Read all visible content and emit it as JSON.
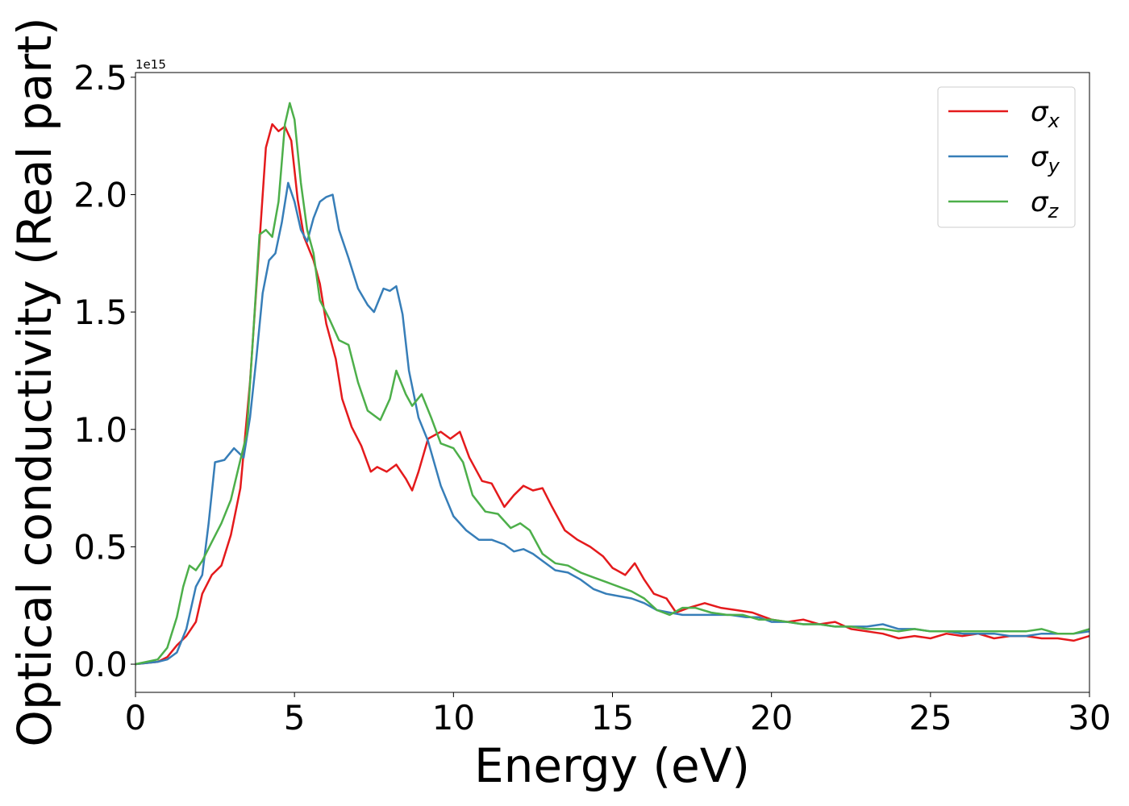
{
  "chart_data": {
    "type": "line",
    "xlabel": "Energy (eV)",
    "ylabel": "Optical conductivity (Real part)",
    "y_offset_text": "1e15",
    "xlim": [
      0,
      30
    ],
    "ylim": [
      -0.12,
      2.52
    ],
    "x_ticks": [
      0,
      5,
      10,
      15,
      20,
      25,
      30
    ],
    "x_tick_labels": [
      "0",
      "5",
      "10",
      "15",
      "20",
      "25",
      "30"
    ],
    "y_ticks": [
      0.0,
      0.5,
      1.0,
      1.5,
      2.0,
      2.5
    ],
    "y_tick_labels": [
      "0.0",
      "0.5",
      "1.0",
      "1.5",
      "2.0",
      "2.5"
    ],
    "grid": false,
    "legend_position": "top-right",
    "series": [
      {
        "name": "σx",
        "symbol": "σ",
        "subscript": "x",
        "color": "#e41a1c",
        "points": [
          [
            0,
            0
          ],
          [
            0.7,
            0.01
          ],
          [
            1,
            0.03
          ],
          [
            1.3,
            0.08
          ],
          [
            1.6,
            0.12
          ],
          [
            1.9,
            0.18
          ],
          [
            2.1,
            0.3
          ],
          [
            2.4,
            0.38
          ],
          [
            2.7,
            0.42
          ],
          [
            3,
            0.55
          ],
          [
            3.3,
            0.75
          ],
          [
            3.6,
            1.2
          ],
          [
            3.9,
            1.8
          ],
          [
            4.1,
            2.2
          ],
          [
            4.3,
            2.3
          ],
          [
            4.5,
            2.27
          ],
          [
            4.7,
            2.29
          ],
          [
            4.9,
            2.23
          ],
          [
            5.1,
            1.98
          ],
          [
            5.3,
            1.82
          ],
          [
            5.6,
            1.72
          ],
          [
            5.8,
            1.62
          ],
          [
            6.0,
            1.45
          ],
          [
            6.3,
            1.3
          ],
          [
            6.5,
            1.13
          ],
          [
            6.8,
            1.01
          ],
          [
            7.1,
            0.93
          ],
          [
            7.4,
            0.82
          ],
          [
            7.6,
            0.84
          ],
          [
            7.9,
            0.82
          ],
          [
            8.2,
            0.85
          ],
          [
            8.5,
            0.79
          ],
          [
            8.7,
            0.74
          ],
          [
            8.9,
            0.82
          ],
          [
            9.2,
            0.96
          ],
          [
            9.6,
            0.99
          ],
          [
            9.9,
            0.96
          ],
          [
            10.2,
            0.99
          ],
          [
            10.5,
            0.88
          ],
          [
            10.9,
            0.78
          ],
          [
            11.2,
            0.77
          ],
          [
            11.6,
            0.67
          ],
          [
            11.9,
            0.72
          ],
          [
            12.2,
            0.76
          ],
          [
            12.5,
            0.74
          ],
          [
            12.8,
            0.75
          ],
          [
            13.1,
            0.67
          ],
          [
            13.5,
            0.57
          ],
          [
            13.9,
            0.53
          ],
          [
            14.3,
            0.5
          ],
          [
            14.7,
            0.46
          ],
          [
            15.0,
            0.41
          ],
          [
            15.4,
            0.38
          ],
          [
            15.7,
            0.43
          ],
          [
            16.0,
            0.36
          ],
          [
            16.3,
            0.3
          ],
          [
            16.7,
            0.28
          ],
          [
            17.0,
            0.22
          ],
          [
            17.4,
            0.24
          ],
          [
            17.9,
            0.26
          ],
          [
            18.4,
            0.24
          ],
          [
            18.9,
            0.23
          ],
          [
            19.4,
            0.22
          ],
          [
            20,
            0.19
          ],
          [
            20.5,
            0.18
          ],
          [
            21,
            0.19
          ],
          [
            21.5,
            0.17
          ],
          [
            22,
            0.18
          ],
          [
            22.5,
            0.15
          ],
          [
            23,
            0.14
          ],
          [
            23.5,
            0.13
          ],
          [
            24,
            0.11
          ],
          [
            24.5,
            0.12
          ],
          [
            25,
            0.11
          ],
          [
            25.5,
            0.13
          ],
          [
            26,
            0.12
          ],
          [
            26.5,
            0.13
          ],
          [
            27,
            0.11
          ],
          [
            27.5,
            0.12
          ],
          [
            28,
            0.12
          ],
          [
            28.5,
            0.11
          ],
          [
            29,
            0.11
          ],
          [
            29.5,
            0.1
          ],
          [
            30,
            0.12
          ]
        ]
      },
      {
        "name": "σy",
        "symbol": "σ",
        "subscript": "y",
        "color": "#377eb8",
        "points": [
          [
            0,
            0
          ],
          [
            0.7,
            0.01
          ],
          [
            1,
            0.02
          ],
          [
            1.3,
            0.05
          ],
          [
            1.6,
            0.15
          ],
          [
            1.9,
            0.33
          ],
          [
            2.1,
            0.38
          ],
          [
            2.3,
            0.6
          ],
          [
            2.5,
            0.86
          ],
          [
            2.8,
            0.87
          ],
          [
            3.1,
            0.92
          ],
          [
            3.4,
            0.88
          ],
          [
            3.6,
            1.05
          ],
          [
            3.8,
            1.3
          ],
          [
            4.0,
            1.58
          ],
          [
            4.2,
            1.72
          ],
          [
            4.4,
            1.75
          ],
          [
            4.6,
            1.88
          ],
          [
            4.8,
            2.05
          ],
          [
            5.0,
            1.97
          ],
          [
            5.2,
            1.85
          ],
          [
            5.4,
            1.8
          ],
          [
            5.6,
            1.9
          ],
          [
            5.8,
            1.97
          ],
          [
            6.0,
            1.99
          ],
          [
            6.2,
            2.0
          ],
          [
            6.4,
            1.85
          ],
          [
            6.7,
            1.73
          ],
          [
            7.0,
            1.6
          ],
          [
            7.3,
            1.53
          ],
          [
            7.5,
            1.5
          ],
          [
            7.8,
            1.6
          ],
          [
            8.0,
            1.59
          ],
          [
            8.2,
            1.61
          ],
          [
            8.4,
            1.49
          ],
          [
            8.6,
            1.25
          ],
          [
            8.9,
            1.05
          ],
          [
            9.2,
            0.95
          ],
          [
            9.6,
            0.76
          ],
          [
            10.0,
            0.63
          ],
          [
            10.4,
            0.57
          ],
          [
            10.8,
            0.53
          ],
          [
            11.2,
            0.53
          ],
          [
            11.6,
            0.51
          ],
          [
            11.9,
            0.48
          ],
          [
            12.2,
            0.49
          ],
          [
            12.5,
            0.47
          ],
          [
            12.8,
            0.44
          ],
          [
            13.2,
            0.4
          ],
          [
            13.6,
            0.39
          ],
          [
            14.0,
            0.36
          ],
          [
            14.4,
            0.32
          ],
          [
            14.8,
            0.3
          ],
          [
            15.2,
            0.29
          ],
          [
            15.6,
            0.28
          ],
          [
            16.0,
            0.26
          ],
          [
            16.4,
            0.23
          ],
          [
            16.8,
            0.22
          ],
          [
            17.2,
            0.21
          ],
          [
            17.7,
            0.21
          ],
          [
            18.2,
            0.21
          ],
          [
            18.7,
            0.21
          ],
          [
            19.2,
            0.2
          ],
          [
            19.6,
            0.2
          ],
          [
            20,
            0.18
          ],
          [
            20.5,
            0.18
          ],
          [
            21,
            0.17
          ],
          [
            21.5,
            0.17
          ],
          [
            22,
            0.16
          ],
          [
            22.5,
            0.16
          ],
          [
            23,
            0.16
          ],
          [
            23.5,
            0.17
          ],
          [
            24,
            0.15
          ],
          [
            24.5,
            0.15
          ],
          [
            25,
            0.14
          ],
          [
            25.5,
            0.14
          ],
          [
            26,
            0.13
          ],
          [
            26.5,
            0.13
          ],
          [
            27,
            0.13
          ],
          [
            27.5,
            0.12
          ],
          [
            28,
            0.12
          ],
          [
            28.5,
            0.13
          ],
          [
            29,
            0.13
          ],
          [
            29.5,
            0.13
          ],
          [
            30,
            0.14
          ]
        ]
      },
      {
        "name": "σz",
        "symbol": "σ",
        "subscript": "z",
        "color": "#4daf4a",
        "points": [
          [
            0,
            0
          ],
          [
            0.7,
            0.02
          ],
          [
            1,
            0.07
          ],
          [
            1.3,
            0.2
          ],
          [
            1.5,
            0.33
          ],
          [
            1.7,
            0.42
          ],
          [
            1.9,
            0.4
          ],
          [
            2.1,
            0.44
          ],
          [
            2.4,
            0.52
          ],
          [
            2.7,
            0.6
          ],
          [
            3.0,
            0.7
          ],
          [
            3.3,
            0.87
          ],
          [
            3.5,
            0.98
          ],
          [
            3.7,
            1.4
          ],
          [
            3.9,
            1.83
          ],
          [
            4.1,
            1.85
          ],
          [
            4.3,
            1.82
          ],
          [
            4.5,
            1.97
          ],
          [
            4.7,
            2.3
          ],
          [
            4.85,
            2.39
          ],
          [
            5.0,
            2.32
          ],
          [
            5.2,
            2.05
          ],
          [
            5.4,
            1.85
          ],
          [
            5.6,
            1.75
          ],
          [
            5.8,
            1.55
          ],
          [
            6.1,
            1.47
          ],
          [
            6.4,
            1.38
          ],
          [
            6.7,
            1.36
          ],
          [
            7.0,
            1.2
          ],
          [
            7.3,
            1.08
          ],
          [
            7.7,
            1.04
          ],
          [
            8.0,
            1.13
          ],
          [
            8.2,
            1.25
          ],
          [
            8.5,
            1.15
          ],
          [
            8.7,
            1.1
          ],
          [
            9.0,
            1.15
          ],
          [
            9.3,
            1.05
          ],
          [
            9.6,
            0.94
          ],
          [
            10.0,
            0.92
          ],
          [
            10.3,
            0.86
          ],
          [
            10.6,
            0.72
          ],
          [
            11.0,
            0.65
          ],
          [
            11.4,
            0.64
          ],
          [
            11.8,
            0.58
          ],
          [
            12.1,
            0.6
          ],
          [
            12.4,
            0.57
          ],
          [
            12.8,
            0.47
          ],
          [
            13.2,
            0.43
          ],
          [
            13.6,
            0.42
          ],
          [
            14.0,
            0.39
          ],
          [
            14.4,
            0.37
          ],
          [
            14.8,
            0.35
          ],
          [
            15.2,
            0.33
          ],
          [
            15.6,
            0.31
          ],
          [
            16.0,
            0.28
          ],
          [
            16.4,
            0.23
          ],
          [
            16.8,
            0.21
          ],
          [
            17.2,
            0.24
          ],
          [
            17.6,
            0.24
          ],
          [
            18.1,
            0.22
          ],
          [
            18.6,
            0.21
          ],
          [
            19.1,
            0.21
          ],
          [
            19.6,
            0.19
          ],
          [
            20,
            0.19
          ],
          [
            20.5,
            0.18
          ],
          [
            21,
            0.17
          ],
          [
            21.5,
            0.17
          ],
          [
            22,
            0.16
          ],
          [
            22.5,
            0.16
          ],
          [
            23,
            0.15
          ],
          [
            23.5,
            0.15
          ],
          [
            24,
            0.14
          ],
          [
            24.5,
            0.15
          ],
          [
            25,
            0.14
          ],
          [
            25.5,
            0.14
          ],
          [
            26,
            0.14
          ],
          [
            26.5,
            0.14
          ],
          [
            27,
            0.14
          ],
          [
            27.5,
            0.14
          ],
          [
            28,
            0.14
          ],
          [
            28.5,
            0.15
          ],
          [
            29,
            0.13
          ],
          [
            29.5,
            0.13
          ],
          [
            30,
            0.15
          ]
        ]
      }
    ]
  }
}
